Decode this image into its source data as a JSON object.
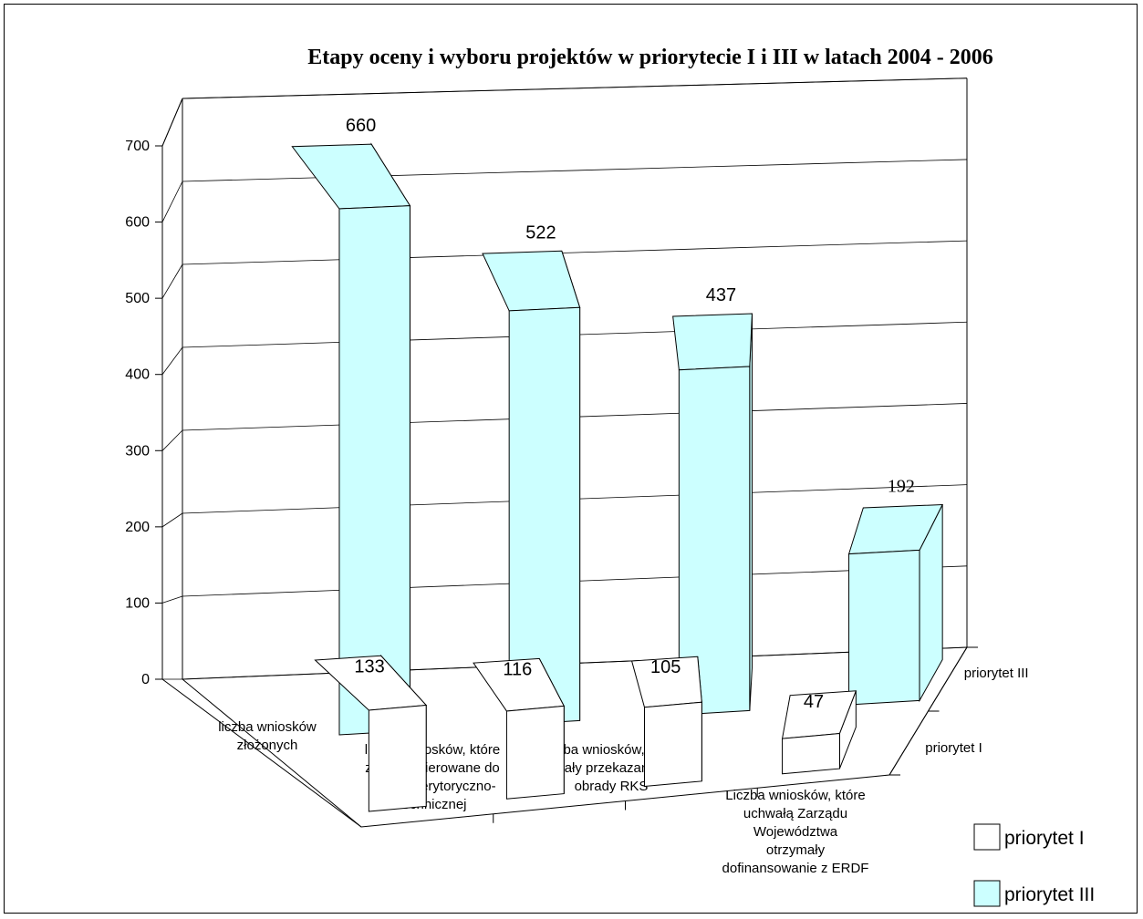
{
  "chart_data": {
    "type": "bar",
    "title": "Etapy oceny i wyboru projektów w priorytecie I i III w latach 2004 - 2006",
    "categories": [
      [
        "liczba wniosków",
        "złożonych"
      ],
      [
        "liczba wniosków, które",
        "zostały skierowane do",
        "oceny merytoryczno-",
        "technicznej"
      ],
      [
        "liczba wniosków, które",
        "zostały przekazane pod",
        "obrady RKS"
      ],
      [
        "Liczba wniosków, które",
        "uchwałą Zarządu",
        "Województwa",
        "otrzymały",
        "dofinansowanie z ERDF"
      ]
    ],
    "series": [
      {
        "name": "priorytet I",
        "values": [
          133,
          116,
          105,
          47
        ],
        "color": "#ffffff"
      },
      {
        "name": "priorytet III",
        "values": [
          660,
          522,
          437,
          192
        ],
        "color": "#ccffff"
      }
    ],
    "ylim": [
      0,
      700
    ],
    "yticks": [
      "0",
      "100",
      "200",
      "300",
      "400",
      "500",
      "600",
      "700"
    ],
    "grid": true,
    "projection": "3d-perspective",
    "legend_position": "bottom-right"
  }
}
